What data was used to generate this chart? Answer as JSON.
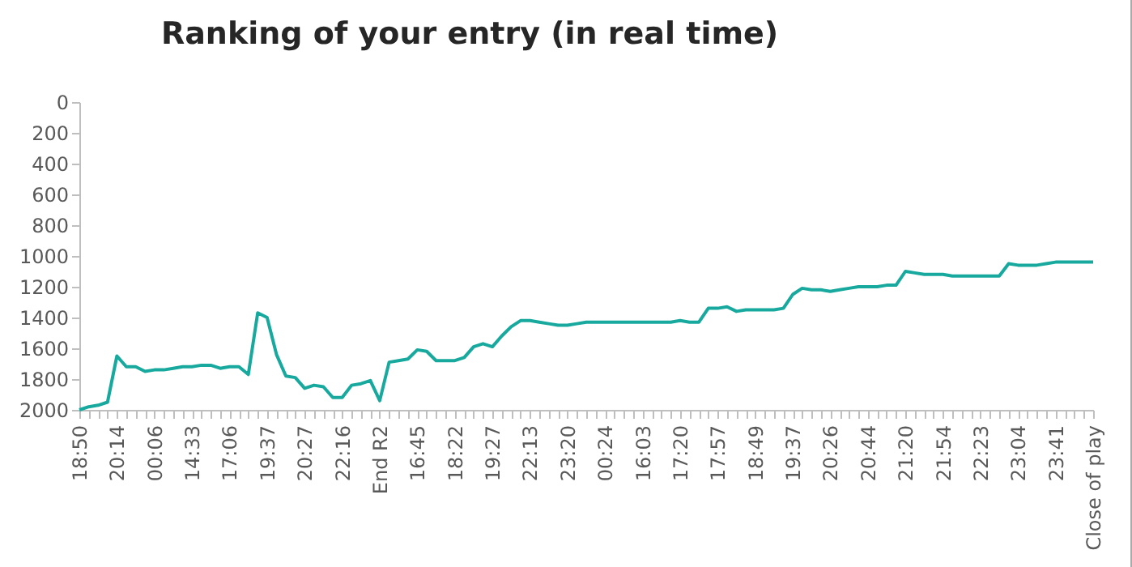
{
  "chart_data": {
    "type": "line",
    "title": "Ranking of your entry (in real time)",
    "categories": [
      "18:50",
      null,
      null,
      null,
      "20:14",
      null,
      null,
      null,
      "00:06",
      null,
      null,
      null,
      "14:33",
      null,
      null,
      null,
      "17:06",
      null,
      null,
      null,
      "19:37",
      null,
      null,
      null,
      "20:27",
      null,
      null,
      null,
      "22:16",
      null,
      null,
      null,
      "End R2",
      null,
      null,
      null,
      "16:45",
      null,
      null,
      null,
      "18:22",
      null,
      null,
      null,
      "19:27",
      null,
      null,
      null,
      "22:13",
      null,
      null,
      null,
      "23:20",
      null,
      null,
      null,
      "00:24",
      null,
      null,
      null,
      "16:03",
      null,
      null,
      null,
      "17:20",
      null,
      null,
      null,
      "17:57",
      null,
      null,
      null,
      "18:49",
      null,
      null,
      null,
      "19:37",
      null,
      null,
      null,
      "20:26",
      null,
      null,
      null,
      "20:44",
      null,
      null,
      null,
      "21:20",
      null,
      null,
      null,
      "21:54",
      null,
      null,
      null,
      "22:23",
      null,
      null,
      null,
      "23:04",
      null,
      null,
      null,
      "23:41",
      null,
      null,
      null,
      "Close of play"
    ],
    "series": [
      {
        "color": "#17a99e",
        "values": [
          2000,
          1980,
          1970,
          1950,
          1650,
          1720,
          1720,
          1750,
          1740,
          1740,
          1730,
          1720,
          1720,
          1710,
          1710,
          1730,
          1720,
          1720,
          1770,
          1370,
          1400,
          1640,
          1780,
          1790,
          1860,
          1840,
          1850,
          1920,
          1920,
          1840,
          1830,
          1810,
          1940,
          1690,
          1680,
          1670,
          1610,
          1620,
          1680,
          1680,
          1680,
          1660,
          1590,
          1570,
          1590,
          1520,
          1460,
          1420,
          1420,
          1430,
          1440,
          1450,
          1450,
          1440,
          1430,
          1430,
          1430,
          1430,
          1430,
          1430,
          1430,
          1430,
          1430,
          1430,
          1420,
          1430,
          1430,
          1340,
          1340,
          1330,
          1360,
          1350,
          1350,
          1350,
          1350,
          1340,
          1250,
          1210,
          1220,
          1220,
          1230,
          1220,
          1210,
          1200,
          1200,
          1200,
          1190,
          1190,
          1100,
          1110,
          1120,
          1120,
          1120,
          1130,
          1130,
          1130,
          1130,
          1130,
          1130,
          1050,
          1060,
          1060,
          1060,
          1050,
          1040,
          1040,
          1040,
          1040,
          1040
        ]
      }
    ],
    "ylim": [
      2000,
      0
    ],
    "yticks": [
      0,
      200,
      400,
      600,
      800,
      1000,
      1200,
      1400,
      1600,
      1800,
      2000
    ],
    "grid": false,
    "legend": false,
    "marker": "none",
    "line_style": "solid"
  }
}
